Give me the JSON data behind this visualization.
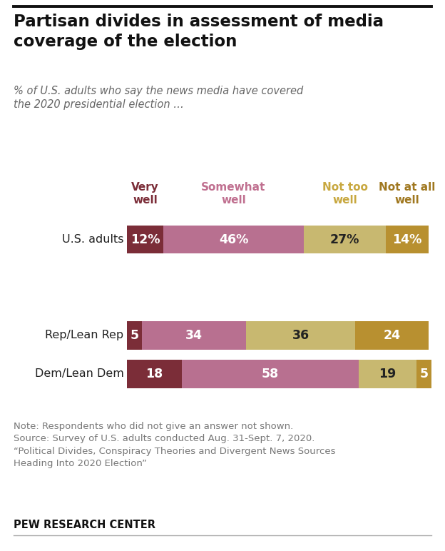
{
  "title": "Partisan divides in assessment of media\ncoverage of the election",
  "subtitle": "% of U.S. adults who say the news media have covered\nthe 2020 presidential election …",
  "categories": [
    "U.S. adults",
    "Rep/Lean Rep",
    "Dem/Lean Dem"
  ],
  "col_labels": [
    "Very\nwell",
    "Somewhat\nwell",
    "Not too\nwell",
    "Not at all\nwell"
  ],
  "col_label_colors": [
    "#7B2D38",
    "#C07090",
    "#C8A840",
    "#A07820"
  ],
  "values": [
    [
      12,
      46,
      27,
      14
    ],
    [
      5,
      34,
      36,
      24
    ],
    [
      18,
      58,
      19,
      5
    ]
  ],
  "bar_colors": [
    "#7B2D38",
    "#B87090",
    "#C8B870",
    "#B89030"
  ],
  "text_colors": [
    [
      "#ffffff",
      "#ffffff",
      "#222222",
      "#ffffff"
    ],
    [
      "#ffffff",
      "#ffffff",
      "#222222",
      "#ffffff"
    ],
    [
      "#ffffff",
      "#ffffff",
      "#222222",
      "#ffffff"
    ]
  ],
  "bar_height": 0.52,
  "figsize": [
    6.24,
    7.72
  ],
  "note": "Note: Respondents who did not give an answer not shown.\nSource: Survey of U.S. adults conducted Aug. 31-Sept. 7, 2020.\n“Political Divides, Conspiracy Theories and Divergent News Sources\nHeading Into 2020 Election”",
  "footer": "PEW RESEARCH CENTER",
  "background_color": "#ffffff"
}
